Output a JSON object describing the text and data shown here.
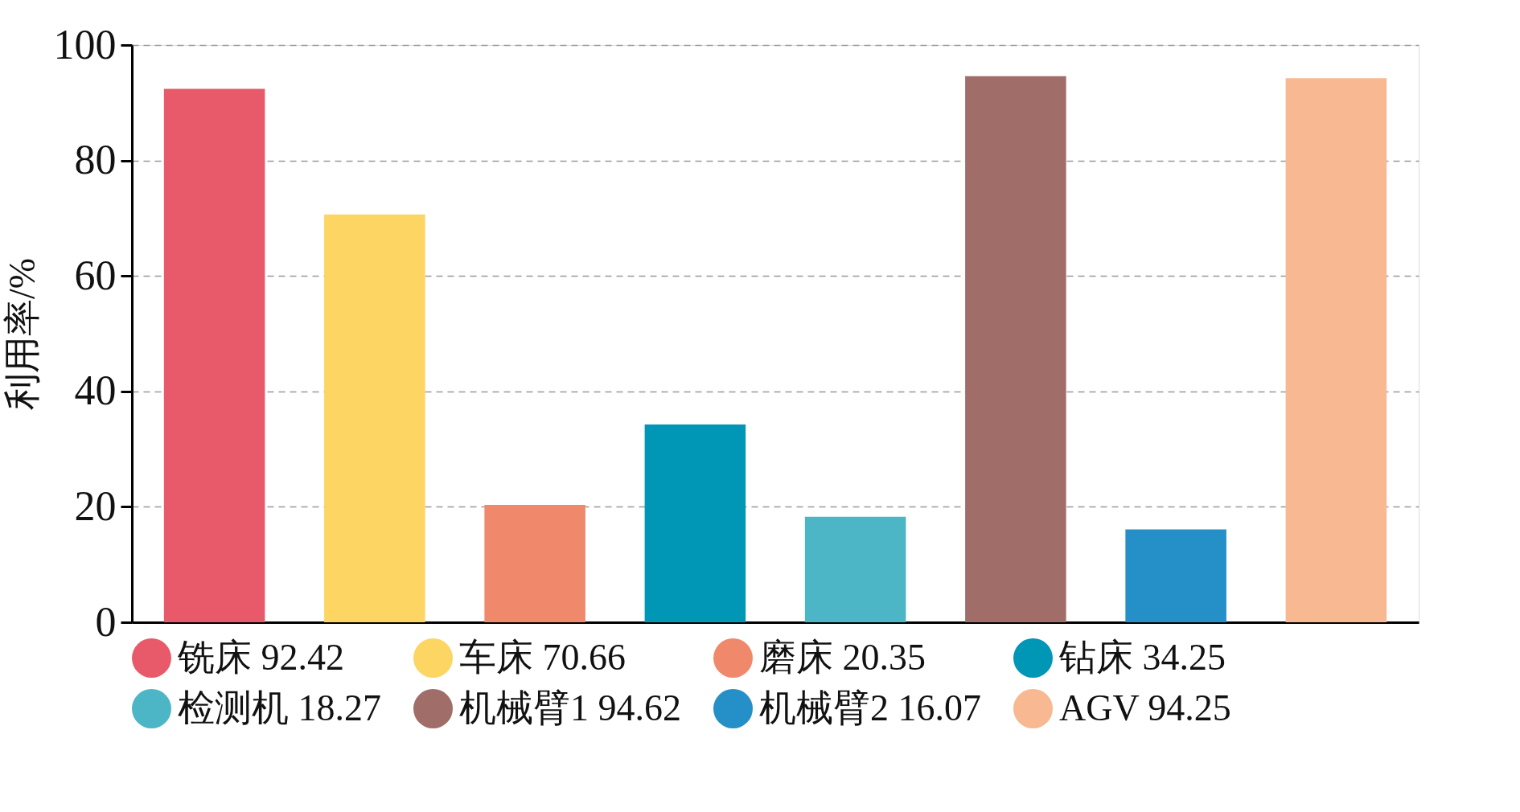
{
  "chart_data": {
    "type": "bar",
    "ylabel": "利用率/%",
    "categories": [
      null,
      null,
      null,
      null,
      null,
      null,
      null,
      null
    ],
    "series": [
      {
        "name": "铣床 92.42",
        "color": "#e85a6a",
        "values": [
          92.42,
          null,
          null,
          null,
          null,
          null,
          null,
          null
        ]
      },
      {
        "name": "车床 70.66",
        "color": "#fdd563",
        "values": [
          null,
          70.66,
          null,
          null,
          null,
          null,
          null,
          null
        ]
      },
      {
        "name": "磨床 20.35",
        "color": "#f0896b",
        "values": [
          null,
          null,
          20.35,
          null,
          null,
          null,
          null,
          null
        ]
      },
      {
        "name": "钻床 34.25",
        "color": "#0096b5",
        "values": [
          null,
          null,
          null,
          34.25,
          null,
          null,
          null,
          null
        ]
      },
      {
        "name": "检测机 18.27",
        "color": "#4db6c6",
        "values": [
          null,
          null,
          null,
          null,
          18.27,
          null,
          null,
          null
        ]
      },
      {
        "name": "机械臂1 94.62",
        "color": "#a06d69",
        "values": [
          null,
          null,
          null,
          null,
          null,
          94.62,
          null,
          null
        ]
      },
      {
        "name": "机械臂2 16.07",
        "color": "#258fc7",
        "values": [
          null,
          null,
          null,
          null,
          null,
          null,
          16.07,
          null
        ]
      },
      {
        "name": "AGV 94.25",
        "color": "#f7b892",
        "values": [
          null,
          null,
          null,
          null,
          null,
          null,
          null,
          94.25
        ]
      }
    ],
    "ylim": [
      0,
      100
    ],
    "yticks": [
      0,
      20,
      40,
      60,
      80,
      100
    ],
    "grid": "y",
    "legend": "bottom",
    "tick_labels": "y"
  }
}
